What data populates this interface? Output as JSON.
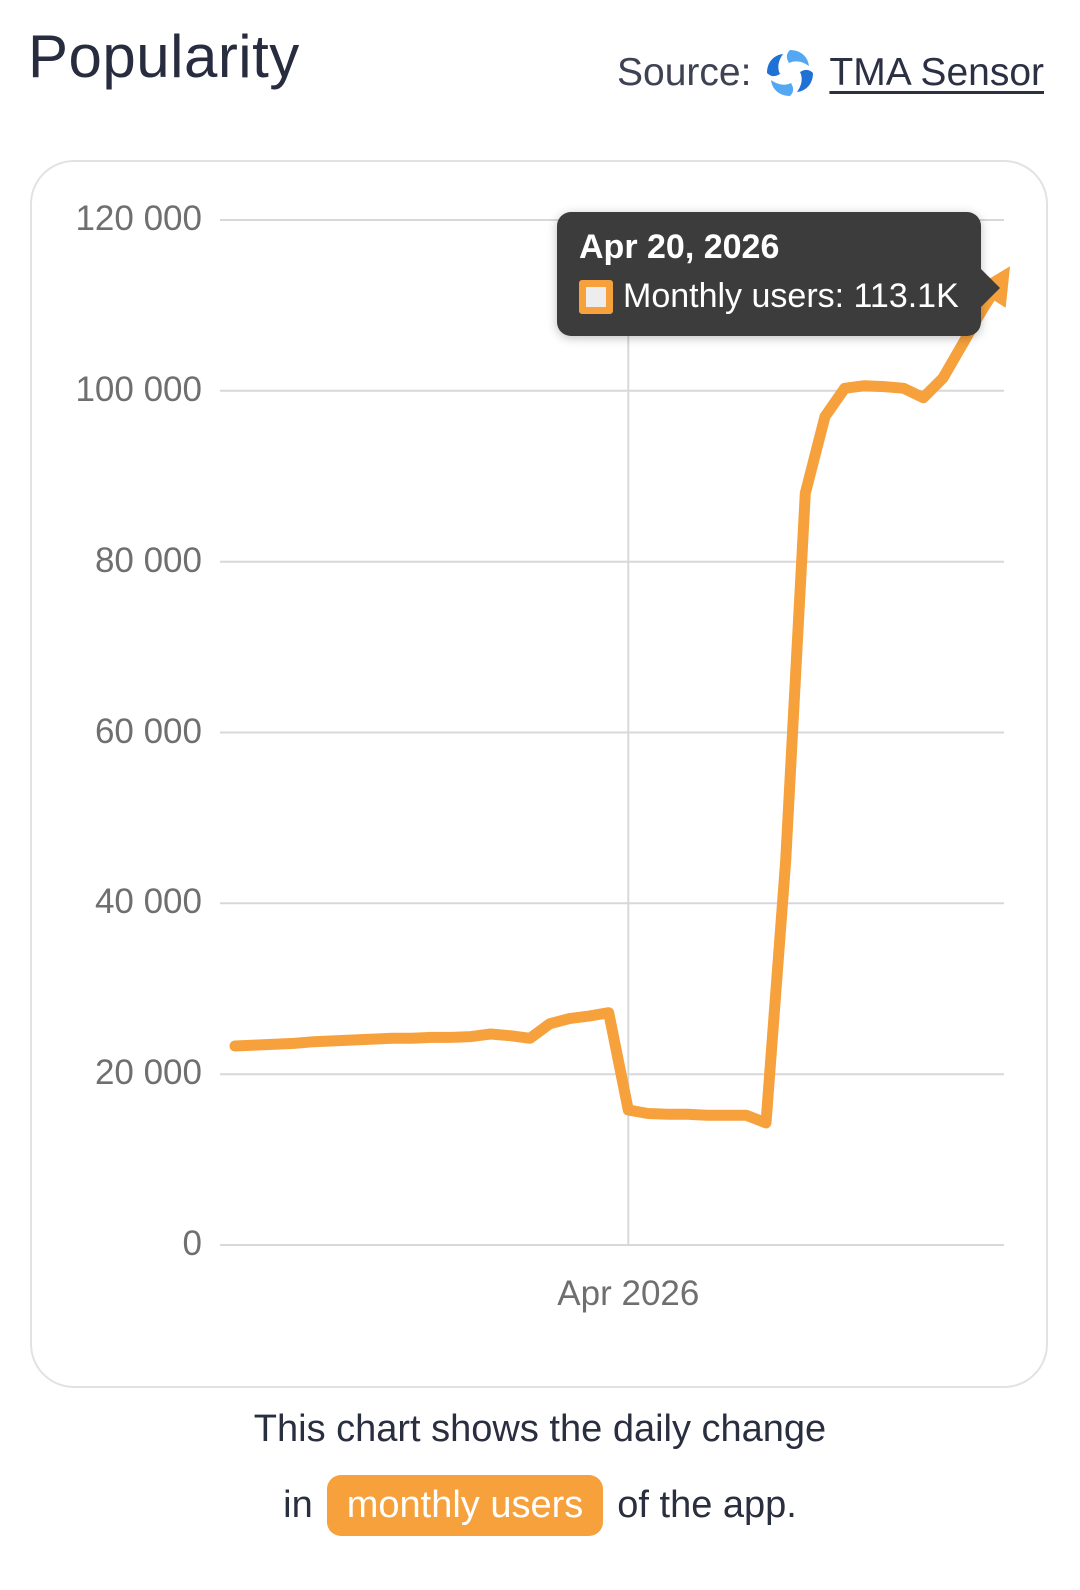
{
  "header": {
    "title": "Popularity",
    "source_label": "Source:",
    "source_link": "TMA Sensor"
  },
  "tooltip": {
    "date": "Apr 20, 2026",
    "text": "Monthly users: 113.1K"
  },
  "caption": {
    "line1": "This chart shows the daily change",
    "line2_prefix": "in",
    "highlight": "monthly users",
    "line2_suffix": "of the app."
  },
  "colors": {
    "accent_orange": "#F6A13C",
    "tooltip_bg": "#3C3C3C",
    "grid": "#D8D8D8",
    "axis_text": "#6F6F6F",
    "title_text": "#272C3F",
    "swatch_fill": "#EDEDED",
    "logo_blue_dark": "#1F71D6",
    "logo_blue_light": "#54A7F2"
  },
  "chart_data": {
    "type": "line",
    "title": "Popularity",
    "xlabel": "",
    "ylabel": "",
    "ylim": [
      0,
      120000
    ],
    "yticks": [
      0,
      20000,
      40000,
      60000,
      80000,
      100000,
      120000
    ],
    "ytick_labels": [
      "0",
      "20 000",
      "40 000",
      "60 000",
      "80 000",
      "100 000",
      "120 000"
    ],
    "x_range": [
      "2026-03-12",
      "2026-04-20"
    ],
    "x_tick_label": "Apr 2026",
    "x_tick_index": 20,
    "grid": true,
    "legend_position": "tooltip",
    "series": [
      {
        "name": "Monthly users",
        "color": "#F6A13C",
        "points": [
          {
            "date": "2026-03-12",
            "value": 23300
          },
          {
            "date": "2026-03-13",
            "value": 23400
          },
          {
            "date": "2026-03-14",
            "value": 23500
          },
          {
            "date": "2026-03-15",
            "value": 23600
          },
          {
            "date": "2026-03-16",
            "value": 23800
          },
          {
            "date": "2026-03-17",
            "value": 23900
          },
          {
            "date": "2026-03-18",
            "value": 24000
          },
          {
            "date": "2026-03-19",
            "value": 24100
          },
          {
            "date": "2026-03-20",
            "value": 24200
          },
          {
            "date": "2026-03-21",
            "value": 24200
          },
          {
            "date": "2026-03-22",
            "value": 24300
          },
          {
            "date": "2026-03-23",
            "value": 24300
          },
          {
            "date": "2026-03-24",
            "value": 24400
          },
          {
            "date": "2026-03-25",
            "value": 24700
          },
          {
            "date": "2026-03-26",
            "value": 24500
          },
          {
            "date": "2026-03-27",
            "value": 24200
          },
          {
            "date": "2026-03-28",
            "value": 25900
          },
          {
            "date": "2026-03-29",
            "value": 26500
          },
          {
            "date": "2026-03-30",
            "value": 26800
          },
          {
            "date": "2026-03-31",
            "value": 27200
          },
          {
            "date": "2026-04-01",
            "value": 15800
          },
          {
            "date": "2026-04-02",
            "value": 15400
          },
          {
            "date": "2026-04-03",
            "value": 15300
          },
          {
            "date": "2026-04-04",
            "value": 15300
          },
          {
            "date": "2026-04-05",
            "value": 15200
          },
          {
            "date": "2026-04-06",
            "value": 15200
          },
          {
            "date": "2026-04-07",
            "value": 15200
          },
          {
            "date": "2026-04-08",
            "value": 14300
          },
          {
            "date": "2026-04-09",
            "value": 45000
          },
          {
            "date": "2026-04-10",
            "value": 88000
          },
          {
            "date": "2026-04-11",
            "value": 97000
          },
          {
            "date": "2026-04-12",
            "value": 100300
          },
          {
            "date": "2026-04-13",
            "value": 100600
          },
          {
            "date": "2026-04-14",
            "value": 100500
          },
          {
            "date": "2026-04-15",
            "value": 100300
          },
          {
            "date": "2026-04-16",
            "value": 99200
          },
          {
            "date": "2026-04-17",
            "value": 101500
          },
          {
            "date": "2026-04-18",
            "value": 105500
          },
          {
            "date": "2026-04-19",
            "value": 109500
          },
          {
            "date": "2026-04-20",
            "value": 113100
          }
        ]
      }
    ]
  }
}
